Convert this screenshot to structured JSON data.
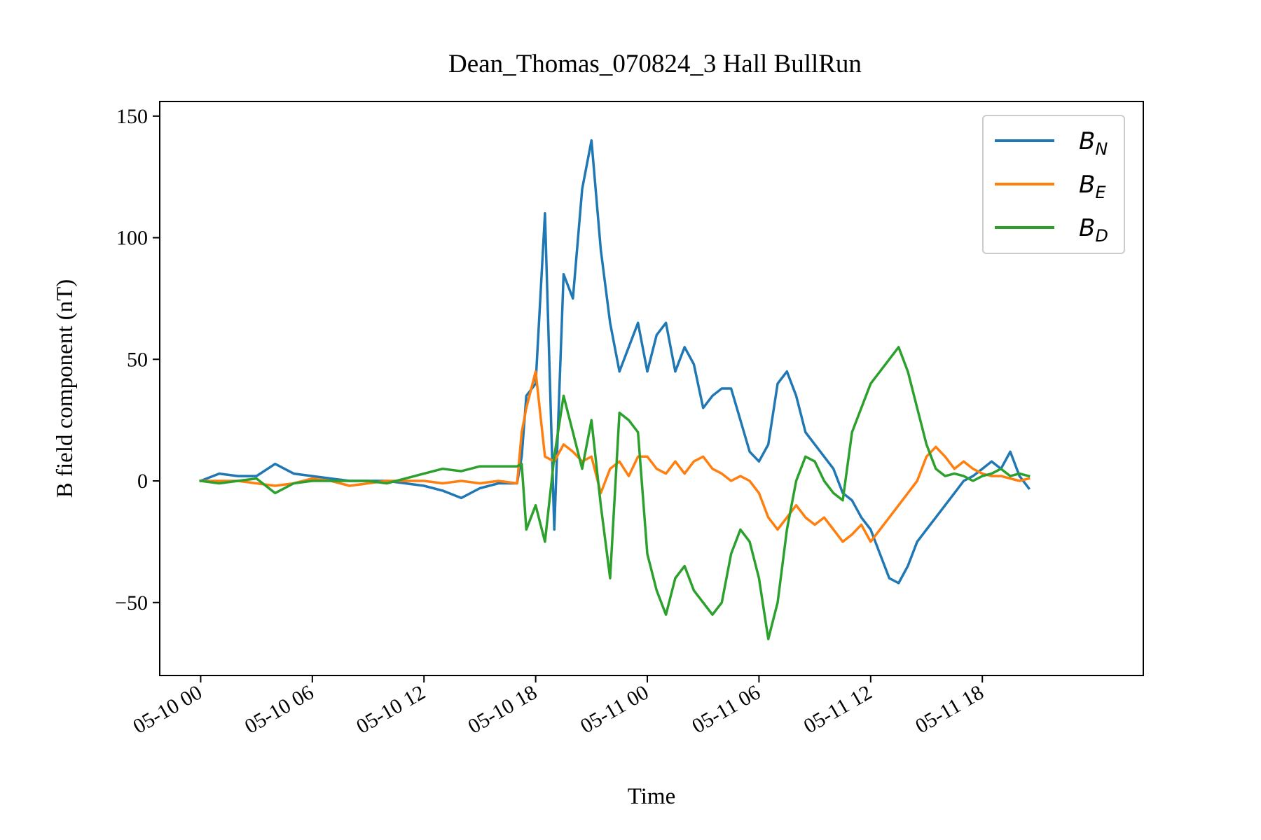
{
  "chart_data": {
    "type": "line",
    "title": "Dean_Thomas_070824_3 Hall BullRun",
    "xlabel": "Time",
    "ylabel": "B field component (nT)",
    "xlim": [
      "05-09 21:48",
      "05-12 02:39"
    ],
    "ylim": [
      -80,
      156
    ],
    "xticks": [
      "05-10 00",
      "05-10 06",
      "05-10 12",
      "05-10 18",
      "05-11 00",
      "05-11 06",
      "05-11 12",
      "05-11 18"
    ],
    "yticks": [
      -50,
      0,
      50,
      100,
      150
    ],
    "yticklabels": [
      "−50",
      "0",
      "50",
      "100",
      "150"
    ],
    "grid": false,
    "legend_position": "top-right",
    "x": [
      "05-10 00:00",
      "05-10 01:00",
      "05-10 02:00",
      "05-10 03:00",
      "05-10 04:00",
      "05-10 05:00",
      "05-10 06:00",
      "05-10 07:00",
      "05-10 08:00",
      "05-10 09:00",
      "05-10 10:00",
      "05-10 11:00",
      "05-10 12:00",
      "05-10 13:00",
      "05-10 14:00",
      "05-10 15:00",
      "05-10 16:00",
      "05-10 17:00",
      "05-10 17:15",
      "05-10 17:30",
      "05-10 18:00",
      "05-10 18:30",
      "05-10 19:00",
      "05-10 19:30",
      "05-10 20:00",
      "05-10 20:30",
      "05-10 21:00",
      "05-10 21:30",
      "05-10 22:00",
      "05-10 22:30",
      "05-10 23:00",
      "05-10 23:30",
      "05-11 00:00",
      "05-11 00:30",
      "05-11 01:00",
      "05-11 01:30",
      "05-11 02:00",
      "05-11 02:30",
      "05-11 03:00",
      "05-11 03:30",
      "05-11 04:00",
      "05-11 04:30",
      "05-11 05:00",
      "05-11 05:30",
      "05-11 06:00",
      "05-11 06:30",
      "05-11 07:00",
      "05-11 07:30",
      "05-11 08:00",
      "05-11 08:30",
      "05-11 09:00",
      "05-11 09:30",
      "05-11 10:00",
      "05-11 10:30",
      "05-11 11:00",
      "05-11 11:30",
      "05-11 12:00",
      "05-11 12:30",
      "05-11 13:00",
      "05-11 13:30",
      "05-11 14:00",
      "05-11 14:30",
      "05-11 15:00",
      "05-11 15:30",
      "05-11 16:00",
      "05-11 16:30",
      "05-11 17:00",
      "05-11 17:30",
      "05-11 18:00",
      "05-11 18:30",
      "05-11 19:00",
      "05-11 19:30",
      "05-11 20:00",
      "05-11 20:30"
    ],
    "series": [
      {
        "name": "B_N",
        "label_base": "B",
        "label_sub": "N",
        "color": "#1f77b4",
        "values": [
          0,
          3,
          2,
          2,
          7,
          3,
          2,
          1,
          0,
          0,
          0,
          -1,
          -2,
          -4,
          -7,
          -3,
          -1,
          -1,
          10,
          35,
          40,
          110,
          -20,
          85,
          75,
          120,
          140,
          95,
          65,
          45,
          55,
          65,
          45,
          60,
          65,
          45,
          55,
          48,
          30,
          35,
          38,
          38,
          25,
          12,
          8,
          15,
          40,
          45,
          35,
          20,
          15,
          10,
          5,
          -5,
          -8,
          -15,
          -20,
          -30,
          -40,
          -42,
          -35,
          -25,
          -20,
          -15,
          -10,
          -5,
          0,
          2,
          5,
          8,
          5,
          12,
          2,
          -3
        ]
      },
      {
        "name": "B_E",
        "label_base": "B",
        "label_sub": "E",
        "color": "#ff7f0e",
        "values": [
          0,
          0,
          0,
          -1,
          -2,
          -1,
          1,
          0,
          -2,
          -1,
          0,
          0,
          0,
          -1,
          0,
          -1,
          0,
          -1,
          20,
          30,
          45,
          10,
          8,
          15,
          12,
          8,
          10,
          -5,
          5,
          8,
          2,
          10,
          10,
          5,
          3,
          8,
          3,
          8,
          10,
          5,
          3,
          0,
          2,
          0,
          -5,
          -15,
          -20,
          -15,
          -10,
          -15,
          -18,
          -15,
          -20,
          -25,
          -22,
          -18,
          -25,
          -20,
          -15,
          -10,
          -5,
          0,
          10,
          14,
          10,
          5,
          8,
          5,
          3,
          2,
          2,
          1,
          0,
          1
        ]
      },
      {
        "name": "B_D",
        "label_base": "B",
        "label_sub": "D",
        "color": "#2ca02c",
        "values": [
          0,
          -1,
          0,
          1,
          -5,
          -1,
          0,
          0,
          0,
          0,
          -1,
          1,
          3,
          5,
          4,
          6,
          6,
          6,
          7,
          -20,
          -10,
          -25,
          10,
          35,
          20,
          5,
          25,
          -10,
          -40,
          28,
          25,
          20,
          -30,
          -45,
          -55,
          -40,
          -35,
          -45,
          -50,
          -55,
          -50,
          -30,
          -20,
          -25,
          -40,
          -65,
          -50,
          -20,
          0,
          10,
          8,
          0,
          -5,
          -8,
          20,
          30,
          40,
          45,
          50,
          55,
          45,
          30,
          15,
          5,
          2,
          3,
          2,
          0,
          2,
          3,
          5,
          2,
          3,
          2
        ]
      }
    ]
  }
}
